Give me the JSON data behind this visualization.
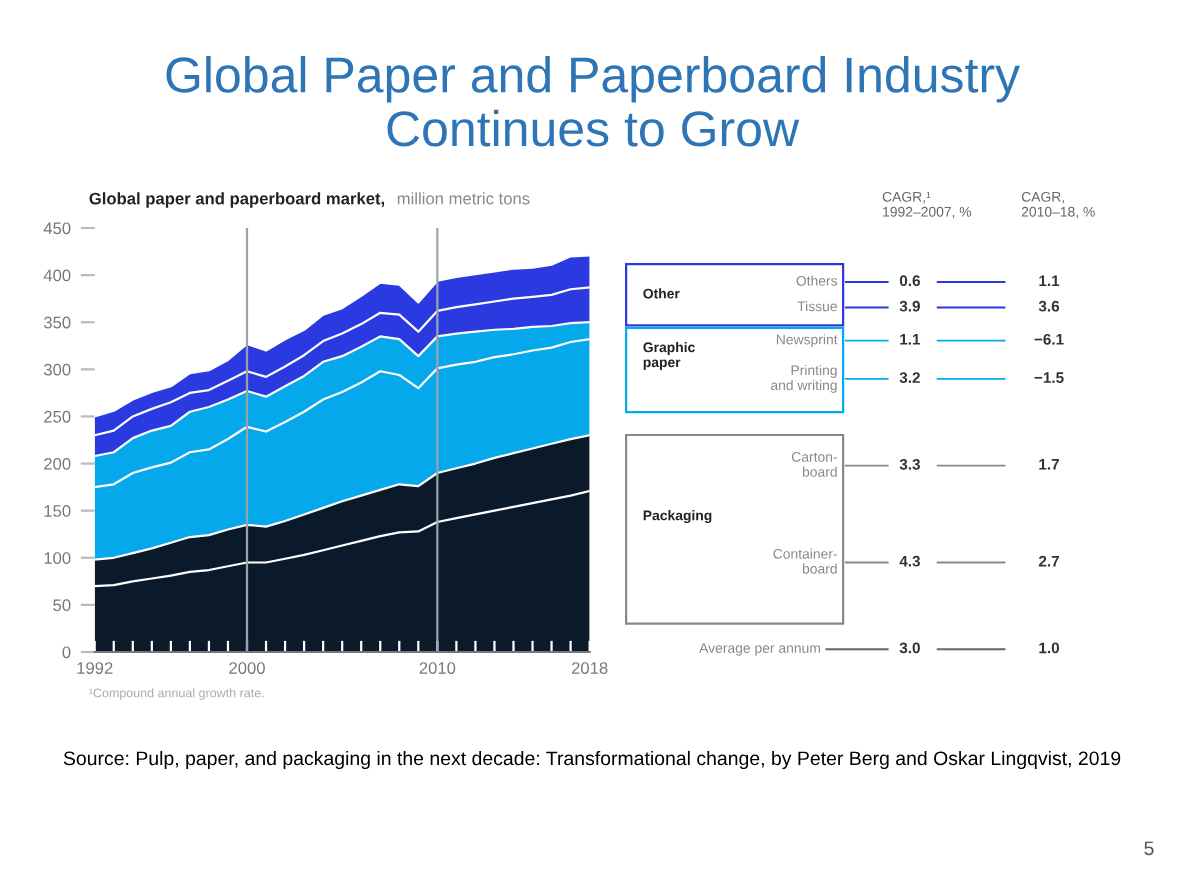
{
  "chart_data": [
    {
      "type": "area",
      "stacked": true,
      "title": "Global Paper and Paperboard Industry Continues to Grow",
      "subtitle": "Global paper and paperboard market,",
      "ylabel": "million metric tons",
      "x": [
        1992,
        1993,
        1994,
        1995,
        1996,
        1997,
        1998,
        1999,
        2000,
        2001,
        2002,
        2003,
        2004,
        2005,
        2006,
        2007,
        2008,
        2009,
        2010,
        2011,
        2012,
        2013,
        2014,
        2015,
        2016,
        2017,
        2018
      ],
      "series": [
        {
          "color": "#0b1a2a",
          "values": [
            70,
            71,
            75,
            78,
            81,
            85,
            87,
            91,
            95,
            95,
            99,
            103,
            108,
            113,
            118,
            123,
            127,
            128,
            138,
            142,
            146,
            150,
            154,
            158,
            162,
            166,
            171
          ]
        },
        {
          "color": "#0b1a2a",
          "values": [
            28,
            29,
            30,
            32,
            35,
            37,
            37,
            39,
            40,
            38,
            40,
            43,
            45,
            47,
            48,
            49,
            51,
            48,
            52,
            53,
            54,
            56,
            57,
            58,
            59,
            60,
            59
          ]
        },
        {
          "color": "#06a8ec",
          "values": [
            77,
            78,
            85,
            86,
            85,
            90,
            91,
            96,
            104,
            101,
            105,
            109,
            115,
            116,
            120,
            126,
            116,
            104,
            111,
            110,
            108,
            107,
            105,
            104,
            102,
            103,
            102
          ]
        },
        {
          "color": "#06a8ec",
          "values": [
            33,
            34,
            37,
            39,
            39,
            43,
            45,
            42,
            38,
            37,
            38,
            38,
            40,
            38,
            38,
            37,
            38,
            34,
            34,
            33,
            32,
            29,
            27,
            25,
            23,
            20,
            18
          ]
        },
        {
          "color": "#2a3ae0",
          "values": [
            22,
            23,
            23,
            23,
            25,
            20,
            18,
            20,
            21,
            21,
            21,
            22,
            22,
            24,
            24,
            25,
            26,
            26,
            27,
            28,
            29,
            30,
            32,
            32,
            33,
            36,
            37
          ]
        },
        {
          "color": "#2a3ae0",
          "values": [
            20,
            21,
            18,
            18,
            17,
            21,
            21,
            22,
            29,
            28,
            29,
            27,
            28,
            27,
            30,
            32,
            32,
            31,
            32,
            32,
            32,
            32,
            32,
            31,
            32,
            35,
            34
          ]
        }
      ],
      "xlim": [
        1992,
        2018
      ],
      "xticks": [
        1992,
        {
          "value": 1993,
          "label": null
        },
        {
          "value": 1994,
          "label": null
        },
        {
          "value": 1995,
          "label": null
        },
        {
          "value": 1996,
          "label": null
        },
        {
          "value": 1997,
          "label": null
        },
        {
          "value": 1998,
          "label": null
        },
        {
          "value": 1999,
          "label": null
        },
        2000,
        {
          "value": 2001,
          "label": null
        },
        {
          "value": 2002,
          "label": null
        },
        {
          "value": 2003,
          "label": null
        },
        {
          "value": 2004,
          "label": null
        },
        {
          "value": 2005,
          "label": null
        },
        {
          "value": 2006,
          "label": null
        },
        {
          "value": 2007,
          "label": null
        },
        {
          "value": 2008,
          "label": null
        },
        {
          "value": 2009,
          "label": null
        },
        2010,
        {
          "value": 2011,
          "label": null
        },
        {
          "value": 2012,
          "label": null
        },
        {
          "value": 2013,
          "label": null
        },
        {
          "value": 2014,
          "label": null
        },
        {
          "value": 2015,
          "label": null
        },
        {
          "value": 2016,
          "label": null
        },
        {
          "value": 2017,
          "label": null
        },
        2018
      ],
      "ylim": [
        0,
        450
      ],
      "yticks": [
        0,
        50,
        100,
        150,
        200,
        250,
        300,
        350,
        400,
        450
      ],
      "ref_lines": [
        {
          "axis": "x",
          "value": 2000,
          "color": "#9aa3ad"
        },
        {
          "axis": "x",
          "value": 2010,
          "color": "#9aa3ad"
        }
      ],
      "annotations": [
        "¹Compound annual growth rate.",
        "Source: Pulp, paper, and packaging in the next decade: Transformational change, by Peter Berg and Oskar Lingqvist, 2019",
        "5"
      ]
    },
    {
      "type": "other",
      "data_labels": true,
      "categories": [
        "Others",
        "Tissue",
        "Newsprint",
        "Printing\nand writing",
        "Carton-\nboard",
        "Container-\nboard",
        "Average per annum"
      ],
      "series": [
        {
          "name": "CAGR,¹\n1992–2007, %",
          "values": [
            0.6,
            3.9,
            1.1,
            3.2,
            3.3,
            4.3,
            3.0
          ],
          "value_labels": [
            "0.6",
            "3.9",
            "1.1",
            "3.2",
            "3.3",
            "4.3",
            "3.0"
          ]
        },
        {
          "name": "CAGR,\n2010–18, %",
          "values": [
            1.1,
            3.6,
            -6.1,
            -1.5,
            1.7,
            2.7,
            1.0
          ],
          "value_labels": [
            "1.1",
            "3.6",
            "−6.1",
            "−1.5",
            "1.7",
            "2.7",
            "1.0"
          ]
        }
      ],
      "annotations": [
        "Other",
        "Graphic\npaper",
        "Packaging"
      ]
    }
  ]
}
